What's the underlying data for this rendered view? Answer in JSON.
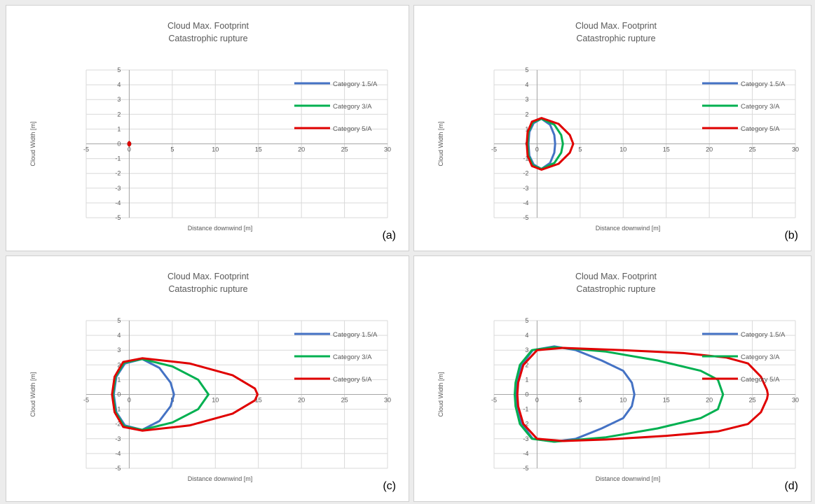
{
  "figure": {
    "panel_labels": [
      "(a)",
      "(b)",
      "(c)",
      "(d)"
    ]
  },
  "chart_data": [
    {
      "type": "line",
      "title": [
        "Cloud Max. Footprint",
        "Catastrophic rupture"
      ],
      "xlabel": "Distance  downwind  [m]",
      "ylabel": "Cloud  Width  [m]",
      "xlim": [
        -5,
        30
      ],
      "ylim": [
        -5,
        5
      ],
      "xticks": [
        -5,
        0,
        5,
        10,
        15,
        20,
        25,
        30
      ],
      "yticks": [
        -5,
        -4,
        -3,
        -2,
        -1,
        0,
        1,
        2,
        3,
        4,
        5
      ],
      "grid": true,
      "legend": "right",
      "series": [
        {
          "name": "Category 1.5/A",
          "color": "#4472C4",
          "points": [
            [
              0,
              0.12
            ],
            [
              0.1,
              0.05
            ],
            [
              0.1,
              -0.05
            ],
            [
              0,
              -0.12
            ],
            [
              -0.1,
              -0.05
            ],
            [
              -0.1,
              0.05
            ],
            [
              0,
              0.12
            ]
          ]
        },
        {
          "name": "Category 3/A",
          "color": "#00B050",
          "points": [
            [
              0,
              0.12
            ],
            [
              0.1,
              0.05
            ],
            [
              0.1,
              -0.05
            ],
            [
              0,
              -0.12
            ],
            [
              -0.1,
              -0.05
            ],
            [
              -0.1,
              0.05
            ],
            [
              0,
              0.12
            ]
          ]
        },
        {
          "name": "Category 5/A",
          "color": "#E00000",
          "points": [
            [
              0,
              0.12
            ],
            [
              0.1,
              0.05
            ],
            [
              0.1,
              -0.05
            ],
            [
              0,
              -0.12
            ],
            [
              -0.1,
              -0.05
            ],
            [
              -0.1,
              0.05
            ],
            [
              0,
              0.12
            ]
          ]
        }
      ]
    },
    {
      "type": "line",
      "title": [
        "Cloud Max. Footprint",
        "Catastrophic rupture"
      ],
      "xlabel": "Distance  downwind  [m]",
      "ylabel": "Cloud  Width  [m]",
      "xlim": [
        -5,
        30
      ],
      "ylim": [
        -5,
        5
      ],
      "xticks": [
        -5,
        0,
        5,
        10,
        15,
        20,
        25,
        30
      ],
      "yticks": [
        -5,
        -4,
        -3,
        -2,
        -1,
        0,
        1,
        2,
        3,
        4,
        5
      ],
      "grid": true,
      "legend": "right",
      "series": [
        {
          "name": "Category 1.5/A",
          "color": "#4472C4",
          "points": [
            [
              0.5,
              1.7
            ],
            [
              1.5,
              1.3
            ],
            [
              2,
              0.6
            ],
            [
              2.1,
              0
            ],
            [
              2,
              -0.6
            ],
            [
              1.5,
              -1.3
            ],
            [
              0.5,
              -1.7
            ],
            [
              -0.4,
              -1.4
            ],
            [
              -0.9,
              -0.8
            ],
            [
              -1,
              0
            ],
            [
              -0.9,
              0.8
            ],
            [
              -0.4,
              1.4
            ],
            [
              0.5,
              1.7
            ]
          ]
        },
        {
          "name": "Category 3/A",
          "color": "#00B050",
          "points": [
            [
              0.5,
              1.7
            ],
            [
              2,
              1.3
            ],
            [
              2.8,
              0.6
            ],
            [
              3,
              0
            ],
            [
              2.8,
              -0.6
            ],
            [
              2,
              -1.3
            ],
            [
              0.5,
              -1.7
            ],
            [
              -0.5,
              -1.45
            ],
            [
              -1,
              -0.8
            ],
            [
              -1.1,
              0
            ],
            [
              -1,
              0.8
            ],
            [
              -0.5,
              1.45
            ],
            [
              0.5,
              1.7
            ]
          ]
        },
        {
          "name": "Category 5/A",
          "color": "#E00000",
          "points": [
            [
              0.5,
              1.75
            ],
            [
              2.5,
              1.35
            ],
            [
              3.8,
              0.6
            ],
            [
              4.2,
              0
            ],
            [
              3.8,
              -0.6
            ],
            [
              2.5,
              -1.35
            ],
            [
              0.5,
              -1.75
            ],
            [
              -0.6,
              -1.5
            ],
            [
              -1.1,
              -0.8
            ],
            [
              -1.2,
              0
            ],
            [
              -1.1,
              0.8
            ],
            [
              -0.6,
              1.5
            ],
            [
              0.5,
              1.75
            ]
          ]
        }
      ]
    },
    {
      "type": "line",
      "title": [
        "Cloud Max. Footprint",
        "Catastrophic rupture"
      ],
      "xlabel": "Distance  downwind  [m]",
      "ylabel": "Cloud  Width  [m]",
      "xlim": [
        -5,
        30
      ],
      "ylim": [
        -5,
        5
      ],
      "xticks": [
        -5,
        0,
        5,
        10,
        15,
        20,
        25,
        30
      ],
      "yticks": [
        -5,
        -4,
        -3,
        -2,
        -1,
        0,
        1,
        2,
        3,
        4,
        5
      ],
      "grid": true,
      "legend": "right",
      "series": [
        {
          "name": "Category 1.5/A",
          "color": "#4472C4",
          "points": [
            [
              1.5,
              2.4
            ],
            [
              3.5,
              1.8
            ],
            [
              4.8,
              0.8
            ],
            [
              5.2,
              0
            ],
            [
              4.8,
              -0.8
            ],
            [
              3.5,
              -1.8
            ],
            [
              1.5,
              -2.4
            ],
            [
              -0.5,
              -2.1
            ],
            [
              -1.5,
              -1.2
            ],
            [
              -1.8,
              0
            ],
            [
              -1.5,
              1.2
            ],
            [
              -0.5,
              2.1
            ],
            [
              1.5,
              2.4
            ]
          ]
        },
        {
          "name": "Category 3/A",
          "color": "#00B050",
          "points": [
            [
              1.5,
              2.4
            ],
            [
              5,
              1.9
            ],
            [
              8,
              1
            ],
            [
              9.2,
              0
            ],
            [
              8,
              -1
            ],
            [
              5,
              -1.9
            ],
            [
              1.5,
              -2.4
            ],
            [
              -0.6,
              -2.15
            ],
            [
              -1.6,
              -1.2
            ],
            [
              -1.9,
              0
            ],
            [
              -1.6,
              1.2
            ],
            [
              -0.6,
              2.15
            ],
            [
              1.5,
              2.4
            ]
          ]
        },
        {
          "name": "Category 5/A",
          "color": "#E00000",
          "points": [
            [
              1.5,
              2.45
            ],
            [
              7,
              2.1
            ],
            [
              12,
              1.3
            ],
            [
              14.6,
              0.4
            ],
            [
              14.9,
              0
            ],
            [
              14.6,
              -0.4
            ],
            [
              12,
              -1.3
            ],
            [
              7,
              -2.1
            ],
            [
              1.5,
              -2.45
            ],
            [
              -0.7,
              -2.2
            ],
            [
              -1.7,
              -1.2
            ],
            [
              -2,
              0
            ],
            [
              -1.7,
              1.2
            ],
            [
              -0.7,
              2.2
            ],
            [
              1.5,
              2.45
            ]
          ]
        }
      ]
    },
    {
      "type": "line",
      "title": [
        "Cloud Max. Footprint",
        "Catastrophic rupture"
      ],
      "xlabel": "Distance  downwind  [m]",
      "ylabel": "Cloud  Width  [m]",
      "xlim": [
        -5,
        30
      ],
      "ylim": [
        -5,
        5
      ],
      "xticks": [
        -5,
        0,
        5,
        10,
        15,
        20,
        25,
        30
      ],
      "yticks": [
        -5,
        -4,
        -3,
        -2,
        -1,
        0,
        1,
        2,
        3,
        4,
        5
      ],
      "grid": true,
      "legend": "right",
      "series": [
        {
          "name": "Category 1.5/A",
          "color": "#4472C4",
          "points": [
            [
              2,
              3.25
            ],
            [
              4.5,
              3
            ],
            [
              7.5,
              2.3
            ],
            [
              10,
              1.6
            ],
            [
              11,
              0.8
            ],
            [
              11.3,
              0
            ],
            [
              11,
              -0.8
            ],
            [
              10,
              -1.6
            ],
            [
              7.5,
              -2.3
            ],
            [
              4.5,
              -3
            ],
            [
              2,
              -3.2
            ],
            [
              -0.5,
              -3
            ],
            [
              -1.8,
              -2
            ],
            [
              -2.3,
              -0.8
            ],
            [
              -2.4,
              0
            ],
            [
              -2.3,
              0.8
            ],
            [
              -1.8,
              2
            ],
            [
              -0.5,
              3
            ],
            [
              2,
              3.25
            ]
          ]
        },
        {
          "name": "Category 3/A",
          "color": "#00B050",
          "points": [
            [
              2,
              3.2
            ],
            [
              8,
              2.9
            ],
            [
              14,
              2.3
            ],
            [
              19,
              1.6
            ],
            [
              21,
              1
            ],
            [
              21.6,
              0
            ],
            [
              21,
              -1
            ],
            [
              19,
              -1.6
            ],
            [
              14,
              -2.3
            ],
            [
              8,
              -2.9
            ],
            [
              2,
              -3.2
            ],
            [
              -0.6,
              -3
            ],
            [
              -2,
              -2
            ],
            [
              -2.5,
              -0.8
            ],
            [
              -2.6,
              0
            ],
            [
              -2.5,
              0.8
            ],
            [
              -2,
              2
            ],
            [
              -0.6,
              3
            ],
            [
              2,
              3.2
            ]
          ]
        },
        {
          "name": "Category 5/A",
          "color": "#E00000",
          "points": [
            [
              3,
              3.15
            ],
            [
              10,
              3
            ],
            [
              17,
              2.8
            ],
            [
              22,
              2.5
            ],
            [
              24.5,
              2.1
            ],
            [
              26,
              1.2
            ],
            [
              26.7,
              0.3
            ],
            [
              26.8,
              0
            ],
            [
              26.7,
              -0.3
            ],
            [
              26,
              -1.2
            ],
            [
              24.5,
              -2
            ],
            [
              21,
              -2.5
            ],
            [
              15,
              -2.8
            ],
            [
              8,
              -3.05
            ],
            [
              3,
              -3.15
            ],
            [
              0,
              -3
            ],
            [
              -1.6,
              -2
            ],
            [
              -2.2,
              -0.8
            ],
            [
              -2.3,
              0
            ],
            [
              -2.2,
              0.8
            ],
            [
              -1.6,
              2
            ],
            [
              0,
              3
            ],
            [
              3,
              3.15
            ]
          ]
        }
      ]
    }
  ]
}
